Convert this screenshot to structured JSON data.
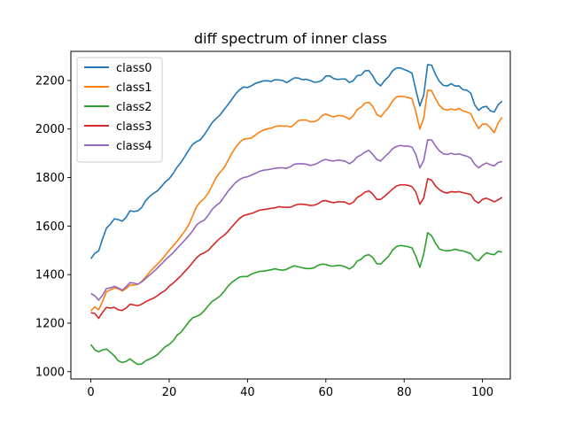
{
  "chart_data": {
    "type": "line",
    "title": "diff spectrum of inner class",
    "xlabel": "",
    "ylabel": "",
    "xlim": [
      -5.1,
      107.1
    ],
    "ylim": [
      970,
      2320
    ],
    "xticks": [
      0,
      20,
      40,
      60,
      80,
      100
    ],
    "yticks": [
      1000,
      1200,
      1400,
      1600,
      1800,
      2000,
      2200
    ],
    "grid": false,
    "legend_position": "upper left",
    "colors": [
      "#1f77b4",
      "#ff7f0e",
      "#2ca02c",
      "#d62728",
      "#9467bd"
    ],
    "series": [
      {
        "name": "class0",
        "x_start": 0,
        "values": [
          1465,
          1488,
          1498,
          1548,
          1592,
          1608,
          1630,
          1627,
          1620,
          1636,
          1663,
          1660,
          1663,
          1677,
          1705,
          1722,
          1735,
          1745,
          1763,
          1782,
          1795,
          1816,
          1842,
          1862,
          1887,
          1913,
          1937,
          1948,
          1956,
          1977,
          2002,
          2027,
          2043,
          2058,
          2080,
          2100,
          2122,
          2145,
          2162,
          2173,
          2171,
          2178,
          2188,
          2193,
          2198,
          2199,
          2196,
          2203,
          2202,
          2200,
          2191,
          2201,
          2211,
          2210,
          2203,
          2205,
          2200,
          2193,
          2194,
          2200,
          2218,
          2219,
          2208,
          2204,
          2206,
          2206,
          2192,
          2199,
          2220,
          2222,
          2240,
          2241,
          2218,
          2190,
          2178,
          2200,
          2215,
          2239,
          2251,
          2252,
          2245,
          2239,
          2230,
          2160,
          2095,
          2140,
          2265,
          2263,
          2225,
          2196,
          2180,
          2177,
          2187,
          2177,
          2178,
          2162,
          2160,
          2148,
          2100,
          2077,
          2090,
          2093,
          2075,
          2070,
          2100,
          2115
        ]
      },
      {
        "name": "class1",
        "x_start": 0,
        "values": [
          1250,
          1267,
          1255,
          1290,
          1330,
          1337,
          1345,
          1342,
          1333,
          1342,
          1357,
          1357,
          1360,
          1372,
          1390,
          1410,
          1427,
          1443,
          1460,
          1480,
          1500,
          1518,
          1537,
          1558,
          1580,
          1605,
          1642,
          1680,
          1700,
          1715,
          1736,
          1768,
          1800,
          1822,
          1840,
          1870,
          1900,
          1925,
          1945,
          1958,
          1960,
          1963,
          1975,
          1987,
          1995,
          2000,
          2003,
          2010,
          2013,
          2012,
          2012,
          2008,
          2020,
          2035,
          2037,
          2037,
          2030,
          2030,
          2037,
          2055,
          2062,
          2055,
          2050,
          2055,
          2055,
          2050,
          2040,
          2055,
          2080,
          2090,
          2107,
          2110,
          2093,
          2060,
          2050,
          2070,
          2088,
          2115,
          2132,
          2135,
          2133,
          2130,
          2125,
          2070,
          2000,
          2045,
          2160,
          2158,
          2125,
          2097,
          2082,
          2078,
          2083,
          2078,
          2085,
          2075,
          2070,
          2063,
          2030,
          2002,
          2020,
          2020,
          2005,
          1985,
          2025,
          2048
        ]
      },
      {
        "name": "class2",
        "x_start": 0,
        "values": [
          1112,
          1090,
          1082,
          1090,
          1093,
          1080,
          1065,
          1045,
          1038,
          1042,
          1053,
          1040,
          1030,
          1032,
          1045,
          1052,
          1060,
          1070,
          1087,
          1103,
          1112,
          1127,
          1150,
          1162,
          1183,
          1205,
          1222,
          1228,
          1236,
          1252,
          1272,
          1290,
          1300,
          1312,
          1330,
          1352,
          1368,
          1380,
          1390,
          1392,
          1392,
          1402,
          1408,
          1413,
          1414,
          1417,
          1420,
          1424,
          1420,
          1418,
          1422,
          1430,
          1436,
          1432,
          1428,
          1425,
          1425,
          1428,
          1438,
          1443,
          1442,
          1436,
          1435,
          1438,
          1437,
          1432,
          1423,
          1433,
          1456,
          1463,
          1478,
          1482,
          1470,
          1445,
          1443,
          1460,
          1475,
          1500,
          1515,
          1520,
          1518,
          1515,
          1510,
          1475,
          1430,
          1485,
          1573,
          1560,
          1530,
          1505,
          1500,
          1498,
          1500,
          1505,
          1500,
          1498,
          1492,
          1487,
          1465,
          1457,
          1476,
          1490,
          1485,
          1482,
          1496,
          1493
        ]
      },
      {
        "name": "class3",
        "x_start": 0,
        "values": [
          1243,
          1240,
          1220,
          1245,
          1265,
          1262,
          1265,
          1255,
          1252,
          1262,
          1278,
          1275,
          1272,
          1278,
          1288,
          1296,
          1303,
          1313,
          1325,
          1335,
          1352,
          1365,
          1380,
          1395,
          1413,
          1430,
          1450,
          1470,
          1483,
          1490,
          1500,
          1518,
          1535,
          1550,
          1562,
          1577,
          1597,
          1615,
          1632,
          1643,
          1648,
          1652,
          1658,
          1665,
          1668,
          1670,
          1673,
          1675,
          1680,
          1678,
          1677,
          1678,
          1685,
          1690,
          1690,
          1688,
          1685,
          1686,
          1692,
          1703,
          1705,
          1700,
          1696,
          1700,
          1700,
          1698,
          1690,
          1698,
          1718,
          1727,
          1740,
          1745,
          1732,
          1710,
          1710,
          1723,
          1737,
          1752,
          1765,
          1770,
          1770,
          1768,
          1762,
          1740,
          1690,
          1716,
          1795,
          1790,
          1765,
          1750,
          1740,
          1736,
          1742,
          1740,
          1742,
          1738,
          1734,
          1730,
          1705,
          1695,
          1710,
          1715,
          1708,
          1700,
          1708,
          1718
        ]
      },
      {
        "name": "class4",
        "x_start": 0,
        "values": [
          1322,
          1313,
          1295,
          1315,
          1343,
          1345,
          1352,
          1345,
          1336,
          1350,
          1367,
          1365,
          1360,
          1370,
          1384,
          1398,
          1412,
          1427,
          1443,
          1460,
          1475,
          1490,
          1508,
          1525,
          1542,
          1560,
          1580,
          1605,
          1617,
          1625,
          1645,
          1670,
          1685,
          1697,
          1720,
          1743,
          1762,
          1780,
          1792,
          1800,
          1803,
          1810,
          1817,
          1825,
          1830,
          1832,
          1835,
          1838,
          1840,
          1840,
          1838,
          1845,
          1855,
          1857,
          1857,
          1855,
          1850,
          1853,
          1860,
          1870,
          1875,
          1870,
          1868,
          1872,
          1870,
          1867,
          1857,
          1867,
          1885,
          1893,
          1905,
          1912,
          1895,
          1875,
          1868,
          1885,
          1900,
          1918,
          1928,
          1932,
          1930,
          1930,
          1925,
          1895,
          1840,
          1870,
          1955,
          1955,
          1930,
          1910,
          1898,
          1895,
          1900,
          1895,
          1898,
          1892,
          1888,
          1880,
          1855,
          1840,
          1852,
          1860,
          1853,
          1848,
          1862,
          1866
        ]
      }
    ]
  }
}
